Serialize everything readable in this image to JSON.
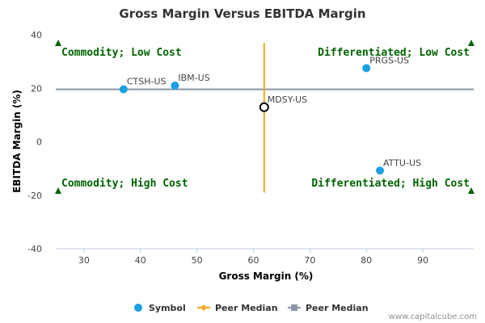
{
  "chart_data": {
    "type": "scatter",
    "title": "Gross Margin Versus EBITDA Margin",
    "xlabel": "Gross Margin (%)",
    "ylabel": "EBITDA Margin (%)",
    "xlim": [
      25,
      99
    ],
    "ylim": [
      -40,
      40
    ],
    "xticks": [
      30,
      40,
      50,
      60,
      70,
      80,
      90
    ],
    "yticks": [
      -40,
      -20,
      0,
      20,
      40
    ],
    "points": [
      {
        "label": "CTSH-US",
        "x": 37,
        "y": 19.6,
        "highlight": false
      },
      {
        "label": "IBM-US",
        "x": 46.1,
        "y": 21,
        "highlight": false
      },
      {
        "label": "PRGS-US",
        "x": 80,
        "y": 27.5,
        "highlight": false
      },
      {
        "label": "MDSY-US",
        "x": 61.9,
        "y": 12.9,
        "highlight": true
      },
      {
        "label": "ATTU-US",
        "x": 82.4,
        "y": -10.8,
        "highlight": false
      }
    ],
    "peer_median_x": 61.9,
    "peer_median_x_range": [
      -19,
      37
    ],
    "peer_median_y": 19.6,
    "quadrant_labels": {
      "top_left": "Commodity; Low Cost",
      "top_right": "Differentiated; Low Cost",
      "bottom_left": "Commodity; High Cost",
      "bottom_right": "Differentiated; High Cost"
    },
    "legend": [
      {
        "name": "Symbol",
        "marker": "circle",
        "color": "#1ba1e2"
      },
      {
        "name": "Peer Median",
        "marker": "diamond-line",
        "color": "#f5a623"
      },
      {
        "name": "Peer Median",
        "marker": "square-line",
        "color": "#8c95a5"
      }
    ]
  },
  "colors": {
    "point": "#1ba1e2",
    "highlight_stroke": "#000000",
    "vertical_median": "#f5a623",
    "horizontal_median": "#8c95a5",
    "quadrant": "#006400",
    "axis": "#c0d0e0"
  },
  "credit": "www.capitalcube.com"
}
